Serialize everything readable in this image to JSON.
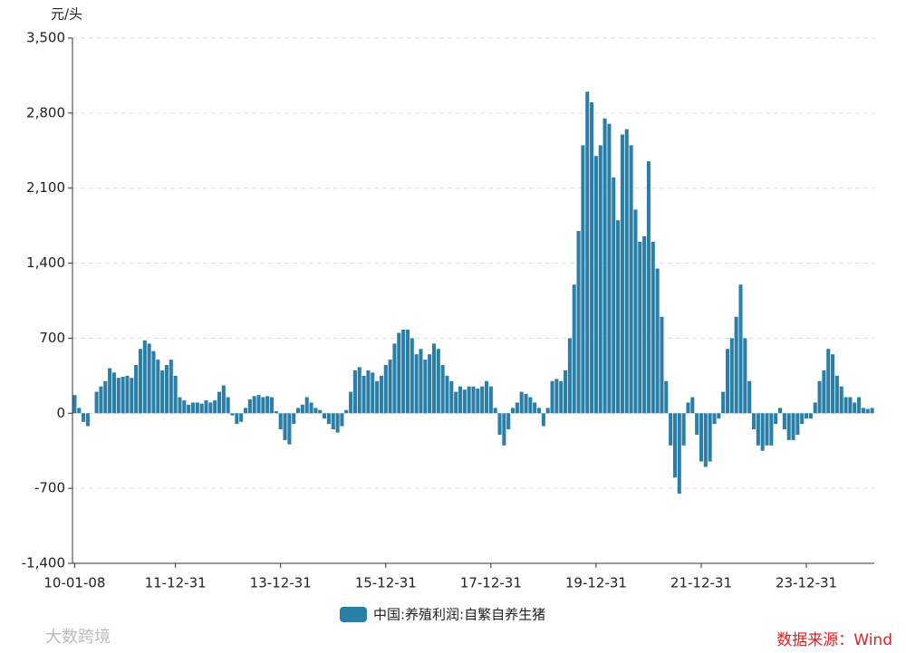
{
  "chart_data": {
    "type": "bar",
    "y_axis_label": "元/头",
    "series": [
      {
        "name": "中国:养殖利润:自繁自养生猪",
        "color": "#2a7fa8",
        "values": [
          170,
          50,
          -80,
          -120,
          0,
          200,
          250,
          300,
          420,
          380,
          330,
          340,
          350,
          330,
          450,
          600,
          680,
          650,
          580,
          500,
          400,
          450,
          500,
          350,
          150,
          120,
          80,
          100,
          100,
          90,
          120,
          100,
          120,
          200,
          260,
          150,
          -20,
          -100,
          -80,
          50,
          130,
          160,
          170,
          150,
          160,
          150,
          20,
          -150,
          -250,
          -290,
          -100,
          50,
          80,
          150,
          100,
          50,
          30,
          -50,
          -100,
          -150,
          -180,
          -120,
          30,
          200,
          400,
          430,
          350,
          400,
          380,
          300,
          350,
          450,
          500,
          650,
          750,
          780,
          780,
          700,
          550,
          600,
          500,
          550,
          650,
          600,
          450,
          350,
          300,
          200,
          250,
          220,
          250,
          250,
          230,
          250,
          300,
          250,
          50,
          -200,
          -300,
          -150,
          50,
          100,
          200,
          180,
          150,
          100,
          50,
          -120,
          50,
          300,
          320,
          300,
          400,
          700,
          1200,
          1700,
          2500,
          3000,
          2900,
          2400,
          2500,
          2750,
          2700,
          2200,
          1800,
          2600,
          2650,
          2500,
          1900,
          1600,
          1650,
          2350,
          1600,
          1350,
          900,
          300,
          -300,
          -600,
          -750,
          -300,
          100,
          150,
          -200,
          -450,
          -500,
          -450,
          -100,
          -50,
          200,
          600,
          700,
          900,
          1200,
          700,
          300,
          -150,
          -300,
          -350,
          -300,
          -300,
          -100,
          50,
          -150,
          -250,
          -250,
          -200,
          -100,
          -50,
          -50,
          100,
          300,
          400,
          600,
          550,
          350,
          250,
          150,
          150,
          100,
          150,
          50,
          40,
          50
        ]
      }
    ],
    "categories": [
      "10-01-08",
      null,
      null,
      null,
      null,
      null,
      null,
      null,
      null,
      null,
      null,
      null,
      null,
      null,
      null,
      null,
      null,
      null,
      null,
      null,
      null,
      null,
      null,
      "11-12-31",
      null,
      null,
      null,
      null,
      null,
      null,
      null,
      null,
      null,
      null,
      null,
      null,
      null,
      null,
      null,
      null,
      null,
      null,
      null,
      null,
      null,
      null,
      null,
      "13-12-31",
      null,
      null,
      null,
      null,
      null,
      null,
      null,
      null,
      null,
      null,
      null,
      null,
      null,
      null,
      null,
      null,
      null,
      null,
      null,
      null,
      null,
      null,
      null,
      "15-12-31",
      null,
      null,
      null,
      null,
      null,
      null,
      null,
      null,
      null,
      null,
      null,
      null,
      null,
      null,
      null,
      null,
      null,
      null,
      null,
      null,
      null,
      null,
      null,
      "17-12-31",
      null,
      null,
      null,
      null,
      null,
      null,
      null,
      null,
      null,
      null,
      null,
      null,
      null,
      null,
      null,
      null,
      null,
      null,
      null,
      null,
      null,
      null,
      null,
      "19-12-31",
      null,
      null,
      null,
      null,
      null,
      null,
      null,
      null,
      null,
      null,
      null,
      null,
      null,
      null,
      null,
      null,
      null,
      null,
      null,
      null,
      null,
      null,
      null,
      "21-12-31",
      null,
      null,
      null,
      null,
      null,
      null,
      null,
      null,
      null,
      null,
      null,
      null,
      null,
      null,
      null,
      null,
      null,
      null,
      null,
      null,
      null,
      null,
      null,
      "23-12-31",
      null,
      null,
      null,
      null,
      null,
      null,
      null,
      null,
      null,
      null,
      null,
      null,
      null,
      null,
      null
    ],
    "ylim": [
      -1400,
      3500
    ],
    "yticks": [
      {
        "value": -1400,
        "label": "-1,400"
      },
      -700,
      0,
      700,
      {
        "value": 1400,
        "label": "1,400"
      },
      {
        "value": 2100,
        "label": "2,100"
      },
      {
        "value": 2800,
        "label": "2,800"
      },
      {
        "value": 3500,
        "label": "3,500"
      }
    ],
    "grid": true,
    "source": "数据来源：Wind",
    "watermark": "大数跨境"
  }
}
